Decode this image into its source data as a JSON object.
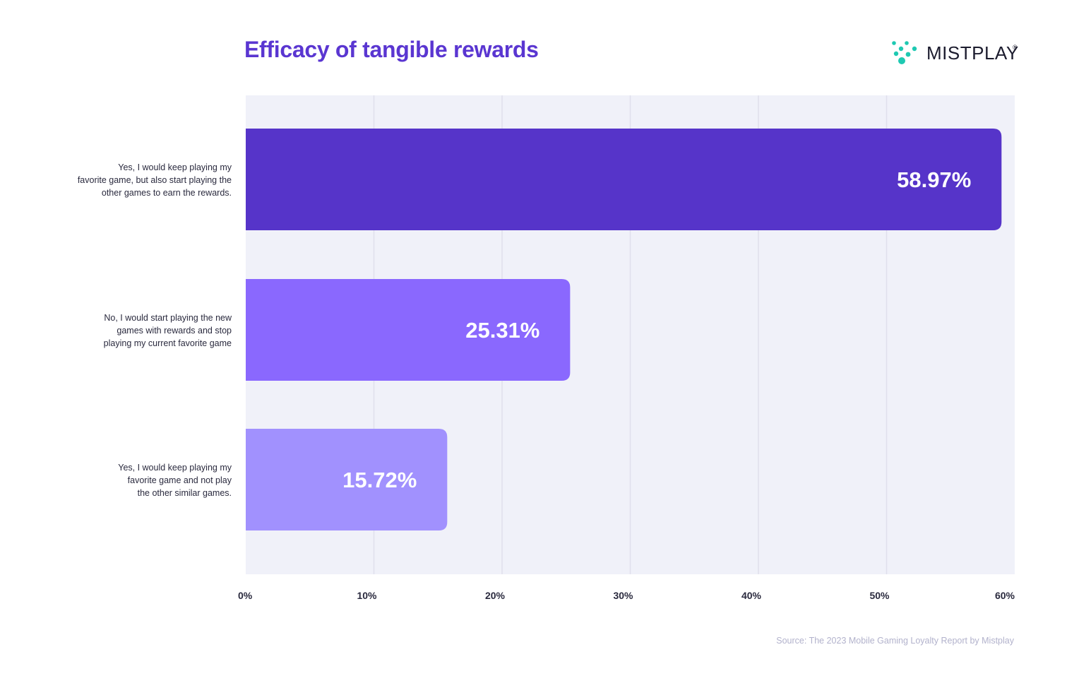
{
  "header": {
    "title": "Efficacy of tangible rewards",
    "brand": "MISTPLAY",
    "brand_mark": "®"
  },
  "footer": {
    "source": "Source: The 2023 Mobile Gaming Loyalty Report by Mistplay"
  },
  "colors": {
    "title": "#5a36d1",
    "plot_background": "#f0f1f9",
    "gridline": "#dfe0ec",
    "tick_label": "#2a2a3e",
    "category_label": "#2a2a3e",
    "value_label": "#ffffff",
    "logo_mark": "#1ec9b2"
  },
  "chart_data": {
    "type": "bar",
    "orientation": "horizontal",
    "title": "Efficacy of tangible rewards",
    "categories": [
      [
        "Yes, I would keep playing my",
        "favorite game, but also start playing the",
        "other games to earn the rewards."
      ],
      [
        "No, I would start playing the new",
        "games with rewards and stop",
        "playing my current favorite game"
      ],
      [
        "Yes, I would keep playing my",
        "favorite game and not play",
        "the other similar games."
      ]
    ],
    "values": [
      58.97,
      25.31,
      15.72
    ],
    "value_labels": [
      "58.97%",
      "25.31%",
      "15.72%"
    ],
    "bar_colors": [
      "#5634c9",
      "#8a68fe",
      "#a191fe"
    ],
    "xlim": [
      0,
      60
    ],
    "xticks": [
      0,
      10,
      20,
      30,
      40,
      50,
      60
    ],
    "xtick_labels": [
      "0%",
      "10%",
      "20%",
      "30%",
      "40%",
      "50%",
      "60%"
    ],
    "grid": "vertical",
    "legend": "none"
  }
}
